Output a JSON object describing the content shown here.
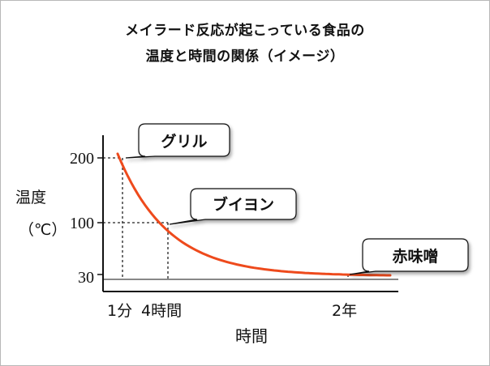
{
  "chart_data": {
    "type": "line",
    "title_lines": [
      "メイラード反応が起こっている食品の",
      "温度と時間の関係（イメージ）"
    ],
    "ylabel_lines": [
      "温度",
      "（℃）"
    ],
    "xlabel": "時間",
    "y_ticks": [
      {
        "value": 200,
        "label": "200"
      },
      {
        "value": 100,
        "label": "100"
      },
      {
        "value": 30,
        "label": "30"
      }
    ],
    "x_ticks": [
      {
        "label": "1分",
        "value": "1分"
      },
      {
        "label": "4時間",
        "value": "4時間"
      },
      {
        "label": "2年",
        "value": "2年"
      }
    ],
    "annotations": [
      {
        "label": "グリル",
        "temperature": 200,
        "time": "1分"
      },
      {
        "label": "ブイヨン",
        "temperature": 100,
        "time": "4時間"
      },
      {
        "label": "赤味噌",
        "temperature": 30,
        "time": "2年"
      }
    ],
    "series": [
      {
        "color": "#ee4a1c"
      }
    ],
    "axis_color": "#111111",
    "reference_lines": "dotted",
    "grid": false,
    "legend": false
  }
}
